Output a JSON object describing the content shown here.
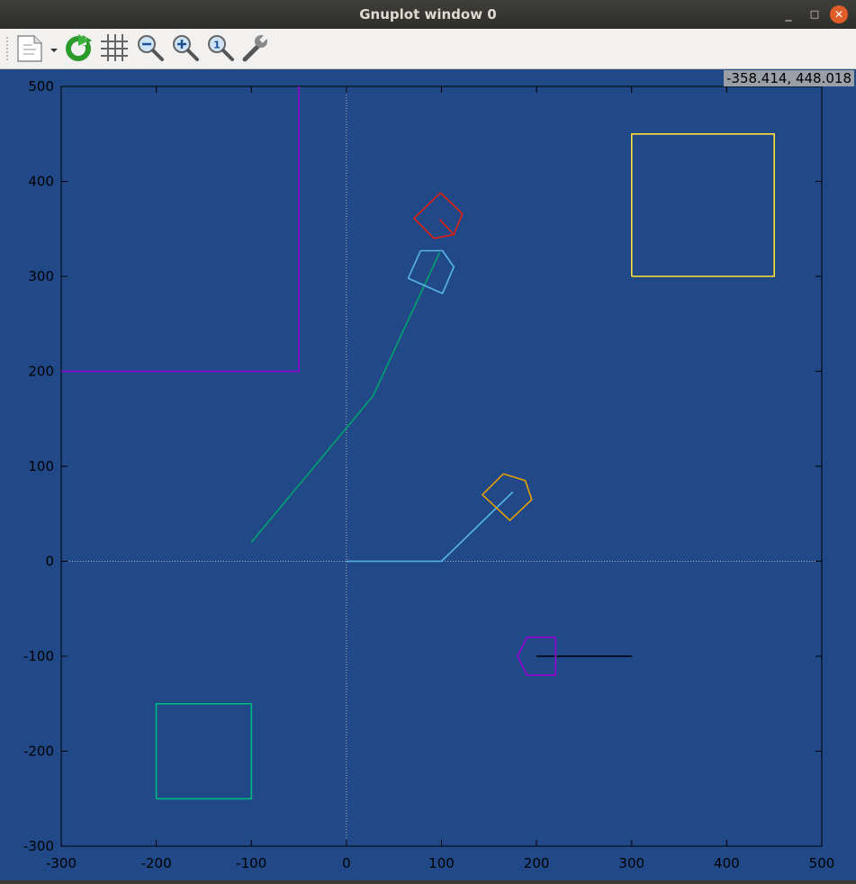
{
  "window": {
    "title": "Gnuplot window 0"
  },
  "titlebar_buttons": {
    "minimize": "_",
    "maximize": "□",
    "close": "✕"
  },
  "toolbar": {
    "items": [
      {
        "name": "export-icon",
        "label": ""
      },
      {
        "name": "replot-icon",
        "label": ""
      },
      {
        "name": "grid-icon",
        "label": ""
      },
      {
        "name": "zoom-out-icon",
        "label": ""
      },
      {
        "name": "zoom-in-icon",
        "label": ""
      },
      {
        "name": "zoom-reset-icon",
        "label": ""
      },
      {
        "name": "settings-wrench-icon",
        "label": ""
      }
    ]
  },
  "coord_readout": "-358.414,  448.018",
  "chart_data": {
    "type": "line",
    "xlim": [
      -300,
      500
    ],
    "ylim": [
      -300,
      500
    ],
    "xticks": [
      -300,
      -200,
      -100,
      0,
      100,
      200,
      300,
      400,
      500
    ],
    "yticks": [
      -300,
      -200,
      -100,
      0,
      100,
      200,
      300,
      400,
      500
    ],
    "xtick_labels": [
      "-300",
      "-200",
      "-100",
      "0",
      "100",
      "200",
      "300",
      "400",
      "500"
    ],
    "ytick_labels": [
      "-300",
      "-200",
      "-100",
      "0",
      "100",
      "200",
      "300",
      "400",
      "500"
    ],
    "background_color": "#214987",
    "zero_axes": true,
    "series": [
      {
        "color": "#9400d3",
        "points": [
          [
            -300,
            200
          ],
          [
            -50,
            200
          ],
          [
            -50,
            500
          ]
        ]
      },
      {
        "color": "#ffe135",
        "points": [
          [
            300,
            300
          ],
          [
            450,
            300
          ],
          [
            450,
            450
          ],
          [
            300,
            450
          ],
          [
            300,
            300
          ]
        ]
      },
      {
        "color": "#00b77e",
        "points": [
          [
            -200,
            -250
          ],
          [
            -100,
            -250
          ],
          [
            -100,
            -150
          ],
          [
            -200,
            -150
          ],
          [
            -200,
            -250
          ]
        ]
      },
      {
        "color": "#00a36e",
        "points": [
          [
            -100,
            20
          ],
          [
            28,
            174
          ],
          [
            98,
            325
          ]
        ]
      },
      {
        "color": "#56b4e9",
        "points": [
          [
            0,
            0
          ],
          [
            100,
            0
          ],
          [
            175,
            73
          ]
        ]
      },
      {
        "color": "#000000",
        "points": [
          [
            200,
            -100
          ],
          [
            300,
            -100
          ]
        ]
      },
      {
        "color": "#9400d3",
        "points": [
          [
            220,
            -80
          ],
          [
            220,
            -120
          ],
          [
            190,
            -120
          ],
          [
            180,
            -100
          ],
          [
            190,
            -80
          ],
          [
            220,
            -80
          ]
        ]
      },
      {
        "color": "#e69f00",
        "points": [
          [
            165,
            92
          ],
          [
            188,
            85
          ],
          [
            195,
            65
          ],
          [
            172,
            43
          ],
          [
            143,
            70
          ],
          [
            165,
            92
          ]
        ]
      },
      {
        "color": "#56b4e9",
        "points": [
          [
            78,
            327
          ],
          [
            101,
            327
          ],
          [
            113,
            310
          ],
          [
            101,
            282
          ],
          [
            65,
            298
          ],
          [
            78,
            327
          ]
        ]
      },
      {
        "color": "#e51e10",
        "points": [
          [
            99,
            388
          ],
          [
            122,
            366
          ],
          [
            113,
            344
          ],
          [
            92,
            340
          ],
          [
            71,
            361
          ],
          [
            99,
            388
          ]
        ]
      },
      {
        "color": "#e51e10",
        "points": [
          [
            98,
            360
          ],
          [
            112,
            345
          ]
        ]
      }
    ]
  }
}
